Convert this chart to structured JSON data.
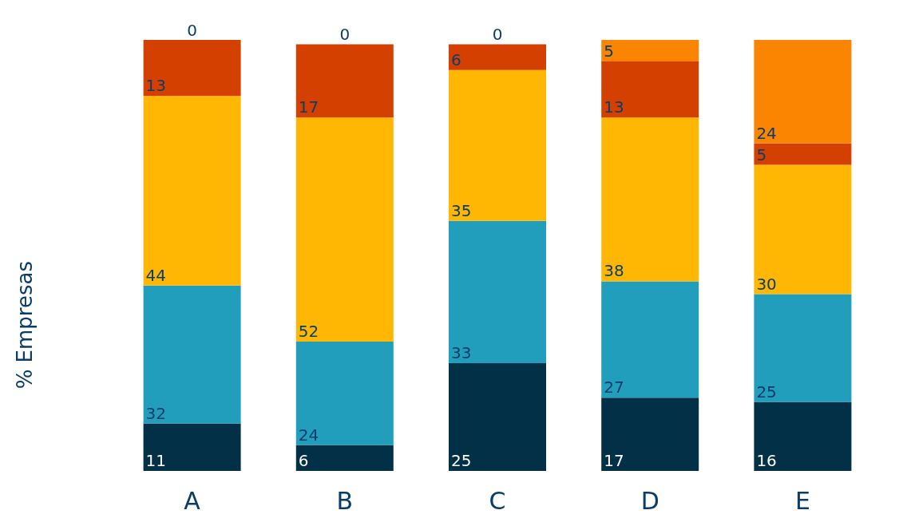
{
  "chart_data": {
    "type": "bar",
    "ylabel": "% Empresas",
    "categories": [
      "A",
      "B",
      "C",
      "D",
      "E"
    ],
    "stacked": true,
    "data_labels": true,
    "series": [
      {
        "color": "#023047",
        "values": [
          11,
          6,
          25,
          17,
          16
        ]
      },
      {
        "color": "#219ebc",
        "values": [
          32,
          24,
          33,
          27,
          25
        ]
      },
      {
        "color": "#ffb703",
        "values": [
          44,
          52,
          35,
          38,
          30
        ]
      },
      {
        "color": "#d44000",
        "values": [
          13,
          17,
          6,
          13,
          5
        ]
      },
      {
        "color": "#fb8500",
        "values": [
          0,
          0,
          0,
          5,
          24
        ]
      }
    ]
  }
}
